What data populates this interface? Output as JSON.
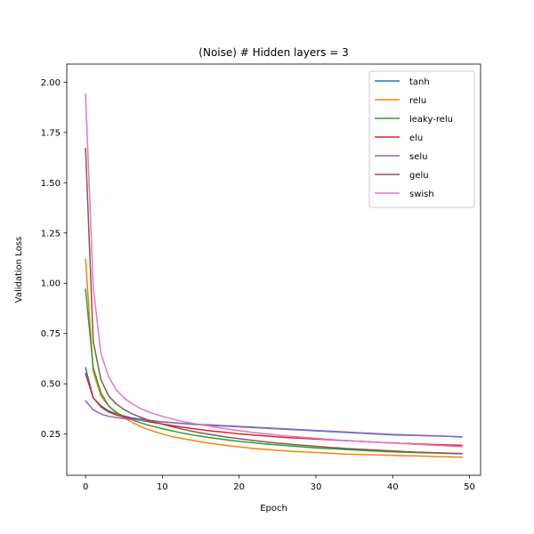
{
  "chart_data": {
    "type": "line",
    "title": "(Noise) # Hidden layers = 3",
    "xlabel": "Epoch",
    "ylabel": "Validation Loss",
    "xlim": [
      -2.45,
      51.45
    ],
    "ylim": [
      0.045,
      2.09
    ],
    "xticks": [
      0,
      10,
      20,
      30,
      40,
      50
    ],
    "yticks": [
      0.25,
      0.5,
      0.75,
      1.0,
      1.25,
      1.5,
      1.75,
      2.0
    ],
    "ytick_labels": [
      "0.25",
      "0.50",
      "0.75",
      "1.00",
      "1.25",
      "1.50",
      "1.75",
      "2.00"
    ],
    "legend_position": "upper right",
    "grid": false,
    "x": [
      0,
      1,
      2,
      3,
      4,
      5,
      6,
      7,
      8,
      9,
      10,
      11,
      12,
      13,
      14,
      15,
      16,
      17,
      18,
      19,
      20,
      21,
      22,
      23,
      24,
      25,
      26,
      27,
      28,
      29,
      30,
      31,
      32,
      33,
      34,
      35,
      36,
      37,
      38,
      39,
      40,
      41,
      42,
      43,
      44,
      45,
      46,
      47,
      48,
      49
    ],
    "series": [
      {
        "name": "tanh",
        "color": "#1f77b4",
        "values": [
          0.58,
          0.43,
          0.39,
          0.365,
          0.35,
          0.34,
          0.33,
          0.325,
          0.32,
          0.315,
          0.31,
          0.307,
          0.304,
          0.301,
          0.298,
          0.296,
          0.294,
          0.292,
          0.29,
          0.288,
          0.286,
          0.284,
          0.282,
          0.28,
          0.278,
          0.276,
          0.274,
          0.272,
          0.27,
          0.268,
          0.266,
          0.264,
          0.262,
          0.26,
          0.258,
          0.256,
          0.254,
          0.252,
          0.25,
          0.248,
          0.246,
          0.245,
          0.244,
          0.243,
          0.242,
          0.241,
          0.24,
          0.239,
          0.237,
          0.235
        ]
      },
      {
        "name": "relu",
        "color": "#ff7f0e",
        "values": [
          1.12,
          0.56,
          0.44,
          0.39,
          0.355,
          0.33,
          0.31,
          0.29,
          0.275,
          0.262,
          0.25,
          0.24,
          0.232,
          0.225,
          0.218,
          0.211,
          0.205,
          0.2,
          0.195,
          0.19,
          0.186,
          0.182,
          0.178,
          0.175,
          0.172,
          0.169,
          0.166,
          0.164,
          0.162,
          0.16,
          0.158,
          0.156,
          0.154,
          0.152,
          0.15,
          0.149,
          0.148,
          0.147,
          0.146,
          0.145,
          0.144,
          0.143,
          0.142,
          0.141,
          0.14,
          0.139,
          0.138,
          0.137,
          0.136,
          0.135
        ]
      },
      {
        "name": "leaky-relu",
        "color": "#2ca02c",
        "values": [
          0.97,
          0.58,
          0.455,
          0.39,
          0.358,
          0.338,
          0.322,
          0.308,
          0.296,
          0.286,
          0.277,
          0.268,
          0.26,
          0.252,
          0.245,
          0.239,
          0.233,
          0.228,
          0.223,
          0.218,
          0.214,
          0.21,
          0.206,
          0.202,
          0.199,
          0.196,
          0.193,
          0.19,
          0.187,
          0.184,
          0.181,
          0.179,
          0.177,
          0.175,
          0.173,
          0.171,
          0.169,
          0.167,
          0.165,
          0.163,
          0.162,
          0.16,
          0.159,
          0.158,
          0.157,
          0.156,
          0.155,
          0.154,
          0.153,
          0.152
        ]
      },
      {
        "name": "elu",
        "color": "#d62728",
        "values": [
          0.55,
          0.43,
          0.385,
          0.36,
          0.345,
          0.335,
          0.327,
          0.32,
          0.313,
          0.306,
          0.3,
          0.294,
          0.288,
          0.282,
          0.277,
          0.272,
          0.267,
          0.263,
          0.259,
          0.255,
          0.251,
          0.248,
          0.245,
          0.242,
          0.239,
          0.236,
          0.233,
          0.231,
          0.229,
          0.227,
          0.225,
          0.223,
          0.221,
          0.219,
          0.217,
          0.215,
          0.213,
          0.211,
          0.209,
          0.207,
          0.206,
          0.204,
          0.203,
          0.201,
          0.2,
          0.198,
          0.197,
          0.196,
          0.195,
          0.194
        ]
      },
      {
        "name": "selu",
        "color": "#9467bd",
        "values": [
          0.415,
          0.37,
          0.35,
          0.338,
          0.332,
          0.327,
          0.323,
          0.32,
          0.317,
          0.314,
          0.311,
          0.308,
          0.305,
          0.302,
          0.3,
          0.298,
          0.296,
          0.294,
          0.292,
          0.29,
          0.288,
          0.286,
          0.284,
          0.282,
          0.28,
          0.278,
          0.276,
          0.274,
          0.272,
          0.27,
          0.268,
          0.266,
          0.264,
          0.262,
          0.26,
          0.258,
          0.256,
          0.254,
          0.252,
          0.25,
          0.248,
          0.247,
          0.246,
          0.244,
          0.243,
          0.242,
          0.241,
          0.239,
          0.238,
          0.236
        ]
      },
      {
        "name": "gelu",
        "color": "#8c564b",
        "values": [
          1.67,
          0.71,
          0.52,
          0.44,
          0.4,
          0.372,
          0.352,
          0.336,
          0.322,
          0.31,
          0.299,
          0.289,
          0.28,
          0.271,
          0.263,
          0.256,
          0.249,
          0.243,
          0.237,
          0.232,
          0.227,
          0.222,
          0.217,
          0.213,
          0.209,
          0.205,
          0.202,
          0.198,
          0.195,
          0.192,
          0.189,
          0.186,
          0.183,
          0.181,
          0.178,
          0.176,
          0.174,
          0.172,
          0.17,
          0.168,
          0.166,
          0.164,
          0.162,
          0.16,
          0.159,
          0.158,
          0.156,
          0.155,
          0.154,
          0.153
        ]
      },
      {
        "name": "swish",
        "color": "#e377c2",
        "values": [
          1.94,
          0.98,
          0.65,
          0.535,
          0.47,
          0.43,
          0.402,
          0.38,
          0.363,
          0.35,
          0.338,
          0.328,
          0.318,
          0.31,
          0.303,
          0.296,
          0.29,
          0.284,
          0.278,
          0.272,
          0.267,
          0.262,
          0.257,
          0.253,
          0.249,
          0.245,
          0.241,
          0.238,
          0.235,
          0.232,
          0.229,
          0.226,
          0.223,
          0.22,
          0.218,
          0.215,
          0.213,
          0.211,
          0.209,
          0.207,
          0.205,
          0.203,
          0.201,
          0.199,
          0.197,
          0.195,
          0.193,
          0.191,
          0.189,
          0.187
        ]
      }
    ]
  }
}
